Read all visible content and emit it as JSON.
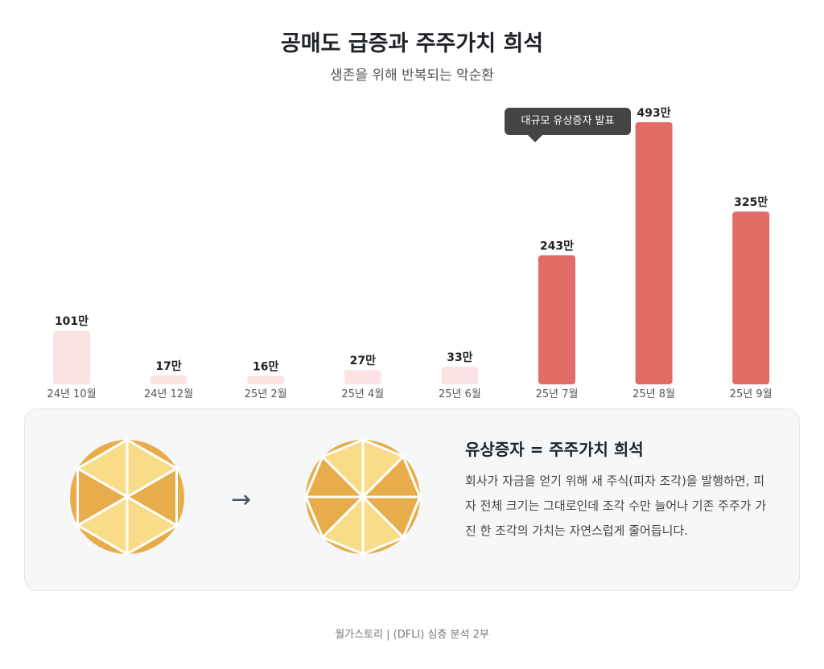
{
  "title": "공매도 급증과 주주가치 희석",
  "subtitle": "생존을 위해 반복되는 악순환",
  "chart_data": {
    "type": "bar",
    "categories": [
      "24년 10월",
      "24년 12월",
      "25년 2월",
      "25년 4월",
      "25년 6월",
      "25년 7월",
      "25년 8월",
      "25년 9월"
    ],
    "values": [
      101,
      17,
      16,
      27,
      33,
      243,
      493,
      325
    ],
    "data_labels": [
      "101만",
      "17만",
      "16만",
      "27만",
      "33만",
      "243만",
      "493만",
      "325만"
    ],
    "highlight": [
      false,
      false,
      false,
      false,
      false,
      true,
      true,
      true
    ],
    "colors": {
      "muted": "#fbe3e3",
      "highlight": "#e36b66"
    },
    "annotation": "대규모 유상증자 발표",
    "grid": false
  },
  "panel": {
    "title": "유상증자 = 주주가치 희석",
    "body": "회사가 자금을 얻기 위해 새 주식(피자 조각)을 발행하면, 피자 전체 크기는 그대로인데 조각 수만 늘어나 기존 주주가 가진 한 조각의 가치는 자연스럽게 줄어듭니다.",
    "arrow_icon": "arrow-right-icon",
    "pie_before_slices": 6,
    "pie_after_slices": 8,
    "colors": {
      "dark": "#e8ad4b",
      "light": "#f8dc88"
    }
  },
  "footer": "월가스토리 | (DFLI) 심층 분석 2부"
}
